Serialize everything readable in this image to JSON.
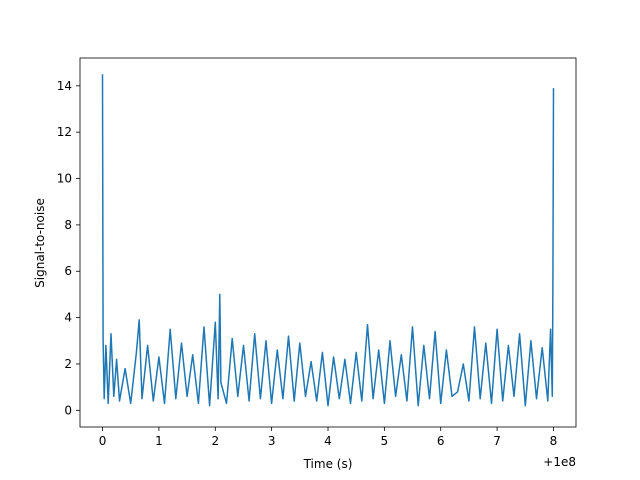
{
  "chart_data": {
    "type": "line",
    "title": "",
    "xlabel": "Time (s)",
    "ylabel": "Signal-to-noise",
    "x_offset_label": "+1e8",
    "xlim": [
      -0.4,
      8.4
    ],
    "ylim": [
      -0.72,
      15.2
    ],
    "x_ticks": [
      0,
      1,
      2,
      3,
      4,
      5,
      6,
      7,
      8
    ],
    "x_tick_labels": [
      "0",
      "1",
      "2",
      "3",
      "4",
      "5",
      "6",
      "7",
      "8"
    ],
    "y_ticks": [
      0,
      2,
      4,
      6,
      8,
      10,
      12,
      14
    ],
    "y_tick_labels": [
      "0",
      "2",
      "4",
      "6",
      "8",
      "10",
      "12",
      "14"
    ],
    "grid": false,
    "series": [
      {
        "color": "#1f77b4",
        "x": [
          0.0,
          0.01,
          0.03,
          0.06,
          0.1,
          0.15,
          0.2,
          0.25,
          0.3,
          0.4,
          0.5,
          0.6,
          0.65,
          0.7,
          0.8,
          0.9,
          1.0,
          1.1,
          1.2,
          1.3,
          1.4,
          1.5,
          1.6,
          1.7,
          1.8,
          1.9,
          2.0,
          2.05,
          2.08,
          2.1,
          2.2,
          2.3,
          2.4,
          2.5,
          2.6,
          2.7,
          2.8,
          2.9,
          3.0,
          3.1,
          3.2,
          3.3,
          3.4,
          3.5,
          3.6,
          3.7,
          3.8,
          3.9,
          4.0,
          4.1,
          4.2,
          4.3,
          4.4,
          4.5,
          4.6,
          4.7,
          4.8,
          4.9,
          5.0,
          5.1,
          5.2,
          5.3,
          5.4,
          5.5,
          5.6,
          5.7,
          5.8,
          5.9,
          6.0,
          6.1,
          6.2,
          6.3,
          6.4,
          6.5,
          6.6,
          6.7,
          6.8,
          6.9,
          7.0,
          7.1,
          7.2,
          7.3,
          7.4,
          7.5,
          7.6,
          7.7,
          7.8,
          7.9,
          7.95,
          7.98,
          7.99,
          8.0
        ],
        "values": [
          14.5,
          3.0,
          0.5,
          2.8,
          0.3,
          3.3,
          0.6,
          2.2,
          0.4,
          1.8,
          0.3,
          2.5,
          3.9,
          0.5,
          2.8,
          0.4,
          2.3,
          0.3,
          3.5,
          0.5,
          2.9,
          0.6,
          2.4,
          0.3,
          3.6,
          0.2,
          3.8,
          0.5,
          5.0,
          1.2,
          0.3,
          3.1,
          0.6,
          2.8,
          0.4,
          3.3,
          0.5,
          3.0,
          0.3,
          2.6,
          0.5,
          3.2,
          0.4,
          2.9,
          0.6,
          2.1,
          0.4,
          2.5,
          0.2,
          2.3,
          0.5,
          2.2,
          0.3,
          2.5,
          0.4,
          3.7,
          0.5,
          2.6,
          0.3,
          3.0,
          0.6,
          2.4,
          0.4,
          3.6,
          0.2,
          2.8,
          0.5,
          3.4,
          0.3,
          2.6,
          0.6,
          0.8,
          2.0,
          0.4,
          3.6,
          0.5,
          2.9,
          0.3,
          3.5,
          0.4,
          2.8,
          0.6,
          3.3,
          0.2,
          3.0,
          0.5,
          2.7,
          0.4,
          3.5,
          0.6,
          5.4,
          13.9
        ]
      }
    ]
  }
}
